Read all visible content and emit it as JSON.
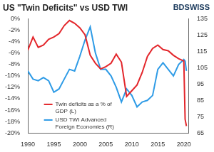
{
  "chart_data": {
    "type": "line",
    "title": "US \"Twin Deficits\" vs USD TWI",
    "logo": "BDSWISS",
    "x": [
      1990,
      1991,
      1992,
      1993,
      1994,
      1995,
      1996,
      1997,
      1998,
      1999,
      2000,
      2001,
      2002,
      2003,
      2004,
      2005,
      2006,
      2007,
      2008,
      2009,
      2010,
      2011,
      2012,
      2013,
      2014,
      2015,
      2016,
      2017,
      2018,
      2019,
      2020,
      2020.25,
      2020.5
    ],
    "xlim": [
      1990,
      2021
    ],
    "xticks": [
      1990,
      1995,
      2000,
      2005,
      2010,
      2015,
      2020
    ],
    "ylim": [
      -20,
      0
    ],
    "yticks": [
      {
        "value": -20,
        "label": "-20%"
      },
      {
        "value": -18,
        "label": "-18%"
      },
      {
        "value": -16,
        "label": "-16%"
      },
      {
        "value": -14,
        "label": "-14%"
      },
      {
        "value": -12,
        "label": "-12%"
      },
      {
        "value": -10,
        "label": "-10%"
      },
      {
        "value": -8,
        "label": "-8%"
      },
      {
        "value": -6,
        "label": "-6%"
      },
      {
        "value": -4,
        "label": "-4%"
      },
      {
        "value": -2,
        "label": "-2%"
      },
      {
        "value": 0,
        "label": "0%"
      }
    ],
    "y2lim": [
      65,
      135
    ],
    "y2ticks": [
      65,
      75,
      85,
      95,
      105,
      115,
      125,
      135
    ],
    "grid": false,
    "legend": "lower center",
    "series": [
      {
        "name": "Twin deficits as a % of GDP (L)",
        "color": "#e3262b",
        "values": [
          -5.5,
          -3.2,
          -5.0,
          -4.6,
          -3.6,
          -3.2,
          -2.6,
          -1.2,
          -0.3,
          -0.8,
          -1.6,
          -2.8,
          -6.4,
          -7.8,
          -8.8,
          -8.4,
          -7.8,
          -6.2,
          -7.6,
          -13.6,
          -12.6,
          -11.6,
          -9.4,
          -6.6,
          -5.2,
          -4.6,
          -5.4,
          -5.6,
          -6.4,
          -7.0,
          -7.4,
          -17.6,
          -18.8
        ]
      },
      {
        "name": "USD TWI Advanced Foreign Economies (R)",
        "color": "#2e9be6",
        "axis": "y2",
        "values": [
          103,
          98,
          97,
          99,
          97,
          90,
          92,
          98,
          104,
          103,
          112,
          122,
          130,
          114,
          104,
          104,
          100,
          93,
          84,
          92,
          88,
          81,
          84,
          85,
          88,
          104,
          108,
          104,
          100,
          107,
          110,
          109,
          103
        ]
      }
    ]
  }
}
